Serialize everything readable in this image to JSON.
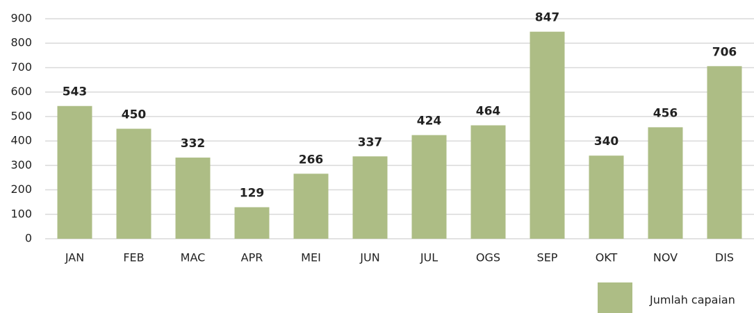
{
  "chart_data": {
    "type": "bar",
    "categories": [
      "JAN",
      "FEB",
      "MAC",
      "APR",
      "MEI",
      "JUN",
      "JUL",
      "OGS",
      "SEP",
      "OKT",
      "NOV",
      "DIS"
    ],
    "series": [
      {
        "name": "Jumlah capaian",
        "color": "#adbd85",
        "values": [
          543,
          450,
          332,
          129,
          266,
          337,
          424,
          464,
          847,
          340,
          456,
          706
        ]
      }
    ],
    "ylim": [
      0,
      900
    ],
    "yticks": [
      0,
      100,
      200,
      300,
      400,
      500,
      600,
      700,
      800,
      900
    ],
    "grid": true,
    "legend": "bottom-right"
  }
}
